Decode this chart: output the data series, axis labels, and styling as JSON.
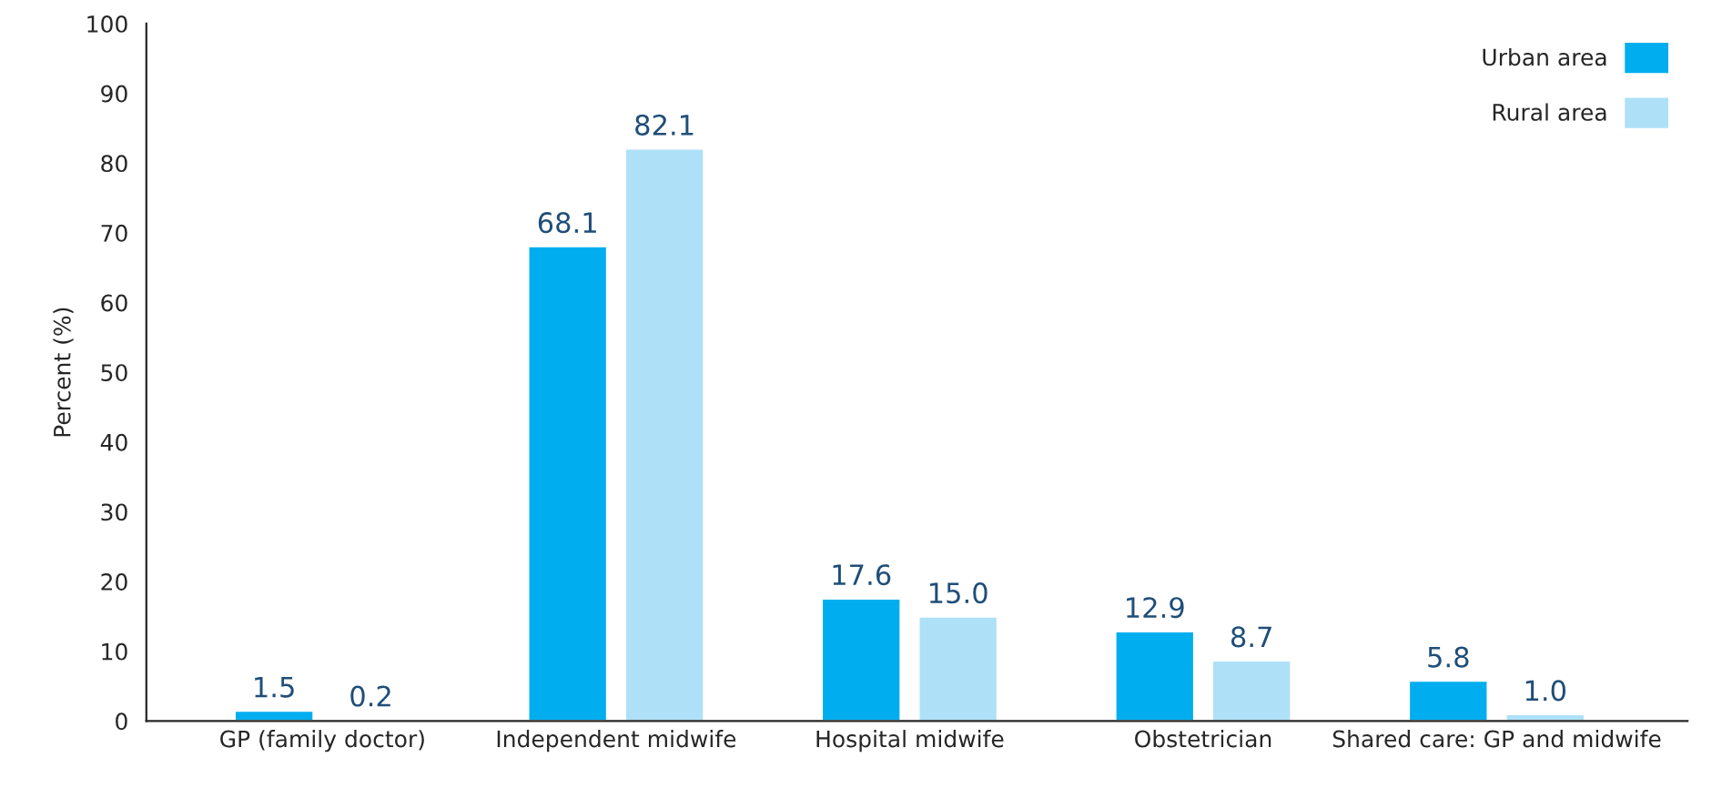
{
  "chart_data": {
    "type": "bar",
    "ylabel": "Percent (%)",
    "categories": [
      "GP (family doctor)",
      "Independent midwife",
      "Hospital midwife",
      "Obstetrician",
      "Shared care: GP and midwife"
    ],
    "series": [
      {
        "name": "Urban area",
        "color": "#00aeef",
        "values": [
          1.5,
          68.1,
          17.6,
          12.9,
          5.8
        ],
        "value_labels": [
          "1.5",
          "68.1",
          "17.6",
          "12.9",
          "5.8"
        ]
      },
      {
        "name": "Rural area",
        "color": "#aee1f8",
        "values": [
          0.2,
          82.1,
          15.0,
          8.7,
          1.0
        ],
        "value_labels": [
          "0.2",
          "82.1",
          "15.0",
          "8.7",
          "1.0"
        ]
      }
    ],
    "ylim": [
      0,
      100
    ],
    "yticks": [
      0,
      10,
      20,
      30,
      40,
      50,
      60,
      70,
      80,
      90,
      100
    ],
    "grid": false,
    "legend": "top right"
  }
}
